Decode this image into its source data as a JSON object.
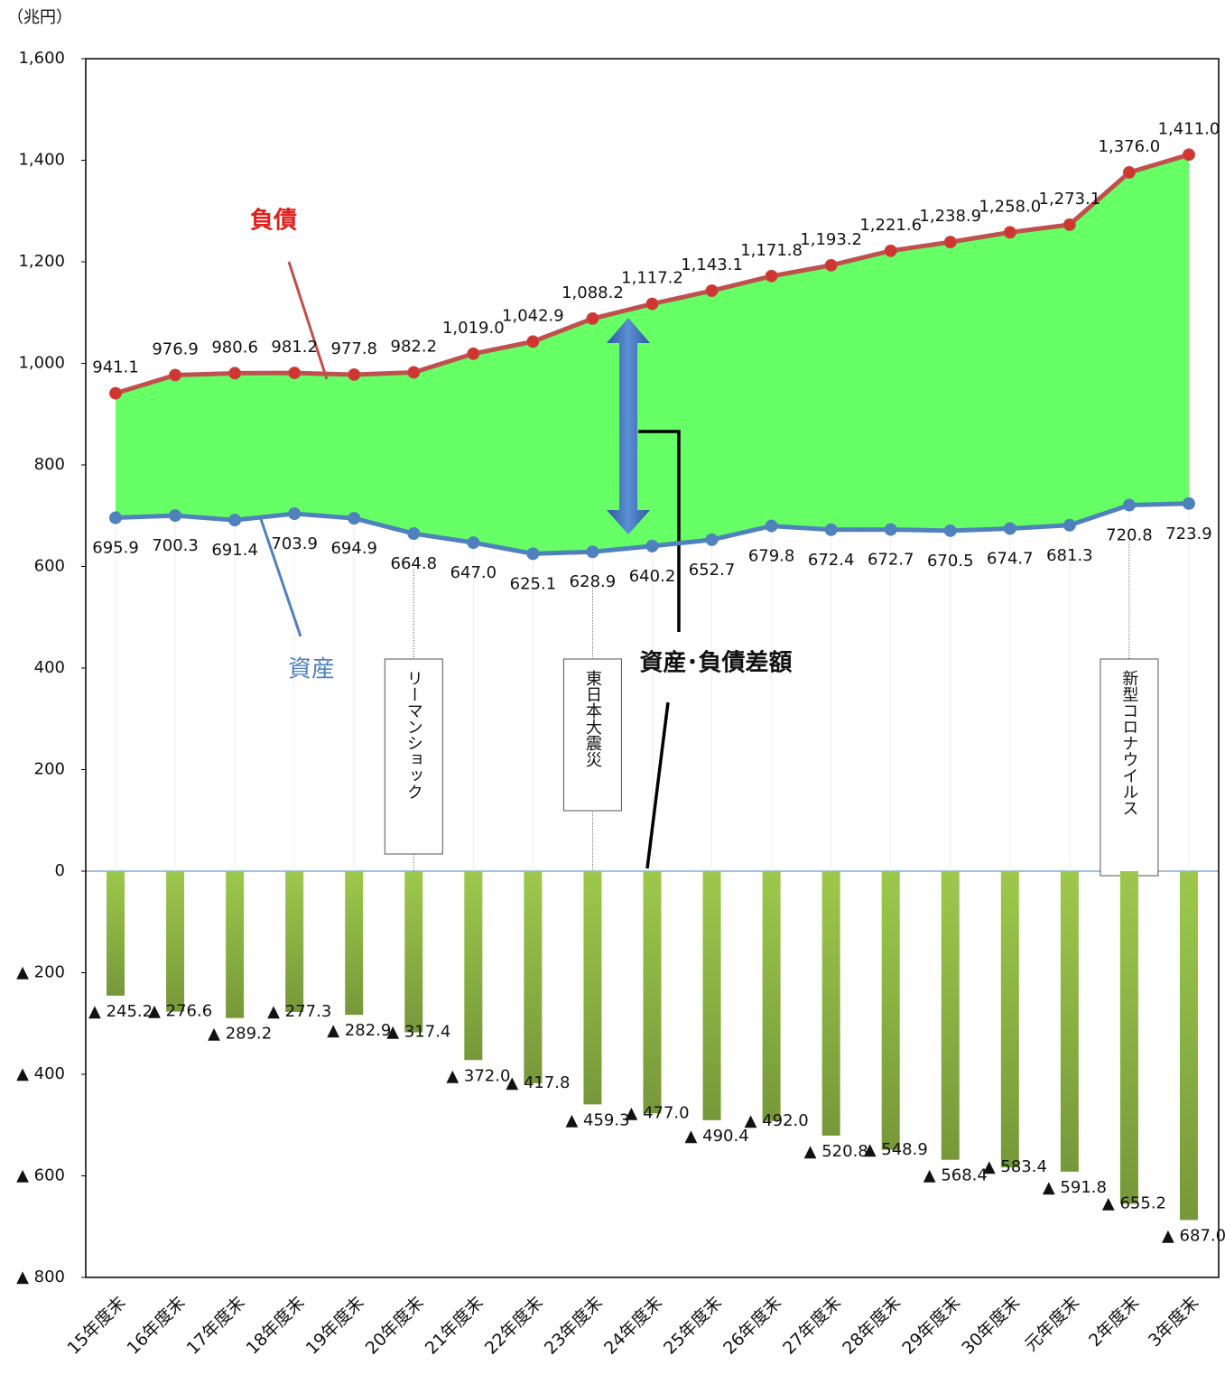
{
  "chart_data": {
    "type": "line-area-bar",
    "unit_label": "（兆円）",
    "categories": [
      "15年度末",
      "16年度末",
      "17年度末",
      "18年度末",
      "19年度末",
      "20年度末",
      "21年度末",
      "22年度末",
      "23年度末",
      "24年度末",
      "25年度末",
      "26年度末",
      "27年度末",
      "28年度末",
      "29年度末",
      "30年度末",
      "元年度末",
      "2年度末",
      "3年度末"
    ],
    "series": [
      {
        "name": "負債",
        "color": "#c0504d",
        "marker_color": "#d0352f",
        "kind": "line",
        "values": [
          941.1,
          976.9,
          980.6,
          981.2,
          977.8,
          982.2,
          1019.0,
          1042.9,
          1088.2,
          1117.2,
          1143.1,
          1171.8,
          1193.2,
          1221.6,
          1238.9,
          1258.0,
          1273.1,
          1376.0,
          1411.0
        ],
        "value_labels": [
          "941.1",
          "976.9",
          "980.6",
          "981.2",
          "977.8",
          "982.2",
          "1,019.0",
          "1,042.9",
          "1,088.2",
          "1,117.2",
          "1,143.1",
          "1,171.8",
          "1,193.2",
          "1,221.6",
          "1,238.9",
          "1,258.0",
          "1,273.1",
          "1,376.0",
          "1,411.0"
        ]
      },
      {
        "name": "資産",
        "color": "#4f81bd",
        "marker_color": "#4f81bd",
        "kind": "line",
        "values": [
          695.9,
          700.3,
          691.4,
          703.9,
          694.9,
          664.8,
          647.0,
          625.1,
          628.9,
          640.2,
          652.7,
          679.8,
          672.4,
          672.7,
          670.5,
          674.7,
          681.3,
          720.8,
          723.9
        ],
        "value_labels": [
          "695.9",
          "700.3",
          "691.4",
          "703.9",
          "694.9",
          "664.8",
          "647.0",
          "625.1",
          "628.9",
          "640.2",
          "652.7",
          "679.8",
          "672.4",
          "672.7",
          "670.5",
          "674.7",
          "681.3",
          "720.8",
          "723.9"
        ]
      },
      {
        "name": "資産･負債差額",
        "color": "#8db646",
        "kind": "bar",
        "values": [
          -245.2,
          -276.6,
          -289.2,
          -277.3,
          -282.9,
          -317.4,
          -372.0,
          -417.8,
          -459.3,
          -477.0,
          -490.4,
          -492.0,
          -520.8,
          -548.9,
          -568.4,
          -583.4,
          -591.8,
          -655.2,
          -687.0
        ],
        "value_labels": [
          "▲ 245.2",
          "▲ 276.6",
          "▲ 289.2",
          "▲ 277.3",
          "▲ 282.9",
          "▲ 317.4",
          "▲ 372.0",
          "▲ 417.8",
          "▲ 459.3",
          "▲ 477.0",
          "▲ 490.4",
          "▲ 492.0",
          "▲ 520.8",
          "▲ 548.9",
          "▲ 568.4",
          "▲ 583.4",
          "▲ 591.8",
          "▲ 655.2",
          "▲ 687.0"
        ]
      }
    ],
    "fill_color": "#66ff66",
    "ylim": [
      -800,
      1600
    ],
    "yticks": [
      {
        "value": 1600,
        "label": "1,600"
      },
      {
        "value": 1400,
        "label": "1,400"
      },
      {
        "value": 1200,
        "label": "1,200"
      },
      {
        "value": 1000,
        "label": "1,000"
      },
      800,
      600,
      400,
      200,
      0,
      {
        "value": -200,
        "label": "▲ 200"
      },
      {
        "value": -400,
        "label": "▲ 400"
      },
      {
        "value": -600,
        "label": "▲ 600"
      },
      {
        "value": -800,
        "label": "▲ 800"
      }
    ],
    "events": [
      {
        "text": "リーマンショック",
        "category": "20年度末"
      },
      {
        "text": "東日本大震災",
        "category": "23年度末"
      },
      {
        "text": "新型コロナウイルス",
        "category": "2年度末"
      }
    ]
  }
}
